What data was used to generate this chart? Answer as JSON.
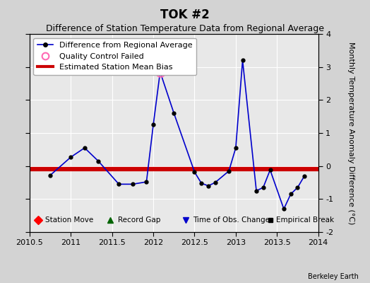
{
  "title": "TOK #2",
  "subtitle": "Difference of Station Temperature Data from Regional Average",
  "ylabel_right": "Monthly Temperature Anomaly Difference (°C)",
  "xlim": [
    2010.5,
    2014.0
  ],
  "ylim": [
    -2.0,
    4.0
  ],
  "yticks": [
    -2,
    -1,
    0,
    1,
    2,
    3,
    4
  ],
  "xticks": [
    2010.5,
    2011,
    2011.5,
    2012,
    2012.5,
    2013,
    2013.5,
    2014
  ],
  "xticklabels": [
    "2010.5",
    "2011",
    "2011.5",
    "2012",
    "2012.5",
    "2013",
    "2013.5",
    "2014"
  ],
  "bias_value": -0.1,
  "line_color": "#0000cc",
  "bias_color": "#cc0000",
  "background_color": "#d3d3d3",
  "plot_bg_color": "#e8e8e8",
  "grid_color": "#ffffff",
  "data_x": [
    2010.75,
    2011.0,
    2011.167,
    2011.333,
    2011.583,
    2011.75,
    2011.917,
    2012.0,
    2012.083,
    2012.25,
    2012.5,
    2012.583,
    2012.667,
    2012.75,
    2012.917,
    2013.0,
    2013.083,
    2013.25,
    2013.333,
    2013.417,
    2013.583,
    2013.667,
    2013.75,
    2013.833
  ],
  "data_y": [
    -0.28,
    0.27,
    0.55,
    0.15,
    -0.55,
    -0.55,
    -0.48,
    1.25,
    2.85,
    1.6,
    -0.18,
    -0.52,
    -0.6,
    -0.5,
    -0.15,
    0.55,
    3.2,
    -0.75,
    -0.65,
    -0.12,
    -1.3,
    -0.85,
    -0.65,
    -0.3
  ],
  "qc_x": [
    2012.083
  ],
  "qc_y": [
    2.85
  ],
  "title_fontsize": 12,
  "subtitle_fontsize": 9,
  "tick_fontsize": 8,
  "label_fontsize": 8,
  "legend_fontsize": 8,
  "watermark": "Berkeley Earth"
}
